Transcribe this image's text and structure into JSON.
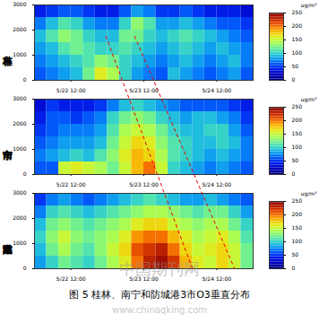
{
  "chart_data": [
    {
      "type": "heatmap",
      "title": "桂林市",
      "x_bins": [
        0,
        4,
        8,
        12,
        16,
        20,
        24,
        28,
        32,
        36,
        40,
        44,
        48,
        52,
        56,
        60,
        64,
        68,
        72
      ],
      "y_bins": [
        0,
        500,
        1000,
        1500,
        2000,
        2500,
        3000
      ],
      "xlim": [
        0,
        72
      ],
      "ylim": [
        0,
        3000
      ],
      "xticks": [
        {
          "value": 12,
          "label": "5/22 12:00"
        },
        {
          "value": 36,
          "label": "5/23 12:00"
        },
        {
          "value": 60,
          "label": "5/24 12:00"
        }
      ],
      "yticks": [
        0,
        1000,
        2000,
        3000
      ],
      "cells": [
        [
          60,
          70,
          80,
          90,
          120,
          160,
          140,
          100,
          80,
          70,
          60,
          90,
          80,
          70,
          60,
          70,
          80,
          60
        ],
        [
          70,
          80,
          90,
          100,
          110,
          130,
          120,
          100,
          90,
          80,
          70,
          80,
          90,
          80,
          70,
          80,
          90,
          70
        ],
        [
          80,
          90,
          110,
          120,
          110,
          100,
          100,
          110,
          100,
          90,
          80,
          90,
          100,
          90,
          80,
          90,
          80,
          70
        ],
        [
          90,
          110,
          130,
          120,
          100,
          90,
          90,
          120,
          120,
          100,
          90,
          100,
          110,
          100,
          90,
          80,
          70,
          60
        ],
        [
          70,
          90,
          110,
          100,
          80,
          70,
          70,
          100,
          130,
          110,
          80,
          80,
          90,
          80,
          70,
          60,
          60,
          50
        ],
        [
          40,
          50,
          60,
          60,
          50,
          40,
          40,
          60,
          80,
          70,
          50,
          50,
          60,
          50,
          40,
          40,
          40,
          30
        ]
      ],
      "colorbar": {
        "range": [
          0,
          250
        ],
        "ticks": [
          0,
          50,
          100,
          150,
          200,
          250
        ],
        "label": "ug/m³"
      }
    },
    {
      "type": "heatmap",
      "title": "南宁市",
      "x_bins": [
        0,
        4,
        8,
        12,
        16,
        20,
        24,
        28,
        32,
        36,
        40,
        44,
        48,
        52,
        56,
        60,
        64,
        68,
        72
      ],
      "y_bins": [
        0,
        500,
        1000,
        1500,
        2000,
        2500,
        3000
      ],
      "xlim": [
        0,
        72
      ],
      "ylim": [
        0,
        3000
      ],
      "xticks": [
        {
          "value": 12,
          "label": "5/22 12:00"
        },
        {
          "value": 36,
          "label": "5/23 12:00"
        },
        {
          "value": 60,
          "label": "5/24 12:00"
        }
      ],
      "yticks": [
        0,
        1000,
        2000,
        3000
      ],
      "cells": [
        [
          60,
          60,
          150,
          160,
          150,
          140,
          120,
          150,
          180,
          200,
          150,
          100,
          90,
          80,
          70,
          80,
          70,
          60
        ],
        [
          70,
          80,
          90,
          100,
          90,
          110,
          130,
          160,
          180,
          170,
          140,
          110,
          100,
          90,
          80,
          90,
          80,
          70
        ],
        [
          60,
          70,
          80,
          80,
          80,
          90,
          120,
          150,
          170,
          160,
          130,
          110,
          100,
          90,
          90,
          100,
          90,
          70
        ],
        [
          50,
          60,
          70,
          70,
          70,
          80,
          110,
          140,
          150,
          140,
          120,
          100,
          90,
          90,
          100,
          100,
          80,
          60
        ],
        [
          40,
          60,
          60,
          50,
          60,
          70,
          100,
          120,
          130,
          120,
          100,
          90,
          80,
          90,
          90,
          80,
          70,
          50
        ],
        [
          30,
          50,
          40,
          40,
          40,
          50,
          70,
          90,
          100,
          90,
          80,
          70,
          60,
          60,
          60,
          60,
          50,
          40
        ]
      ],
      "colorbar": {
        "range": [
          0,
          250
        ],
        "ticks": [
          0,
          50,
          100,
          150,
          200,
          250
        ],
        "label": "ug/m³"
      }
    },
    {
      "type": "heatmap",
      "title": "防城港市",
      "x_bins": [
        0,
        4,
        8,
        12,
        16,
        20,
        24,
        28,
        32,
        36,
        40,
        44,
        48,
        52,
        56,
        60,
        64,
        68,
        72
      ],
      "y_bins": [
        0,
        500,
        1000,
        1500,
        2000,
        2500,
        3000
      ],
      "xlim": [
        0,
        72
      ],
      "ylim": [
        0,
        3000
      ],
      "xticks": [
        {
          "value": 12,
          "label": "5/22 12:00"
        },
        {
          "value": 36,
          "label": "5/23 12:00"
        },
        {
          "value": 60,
          "label": "5/24 12:00"
        }
      ],
      "yticks": [
        0,
        1000,
        2000,
        3000
      ],
      "cells": [
        [
          80,
          100,
          120,
          110,
          100,
          120,
          140,
          160,
          200,
          230,
          240,
          220,
          180,
          160,
          150,
          170,
          150,
          120
        ],
        [
          90,
          120,
          140,
          120,
          110,
          130,
          150,
          170,
          210,
          220,
          230,
          200,
          170,
          150,
          160,
          170,
          150,
          120
        ],
        [
          100,
          130,
          150,
          130,
          120,
          130,
          140,
          160,
          190,
          200,
          200,
          180,
          160,
          140,
          150,
          160,
          140,
          110
        ],
        [
          90,
          120,
          130,
          120,
          110,
          120,
          130,
          140,
          160,
          170,
          170,
          150,
          140,
          130,
          140,
          140,
          120,
          100
        ],
        [
          70,
          100,
          110,
          100,
          90,
          100,
          110,
          120,
          130,
          140,
          140,
          130,
          120,
          110,
          120,
          120,
          100,
          80
        ],
        [
          50,
          70,
          80,
          70,
          60,
          70,
          80,
          90,
          100,
          110,
          100,
          90,
          80,
          80,
          90,
          80,
          70,
          60
        ]
      ],
      "colorbar": {
        "range": [
          0,
          250
        ],
        "ticks": [
          0,
          50,
          100,
          150,
          200,
          250
        ],
        "label": "ug/m³"
      }
    }
  ],
  "caption": "图 5  桂林、南宁和防城港3市O3垂直分布",
  "watermark": [
    "中国期刊网",
    "www.chinaqking.com"
  ]
}
